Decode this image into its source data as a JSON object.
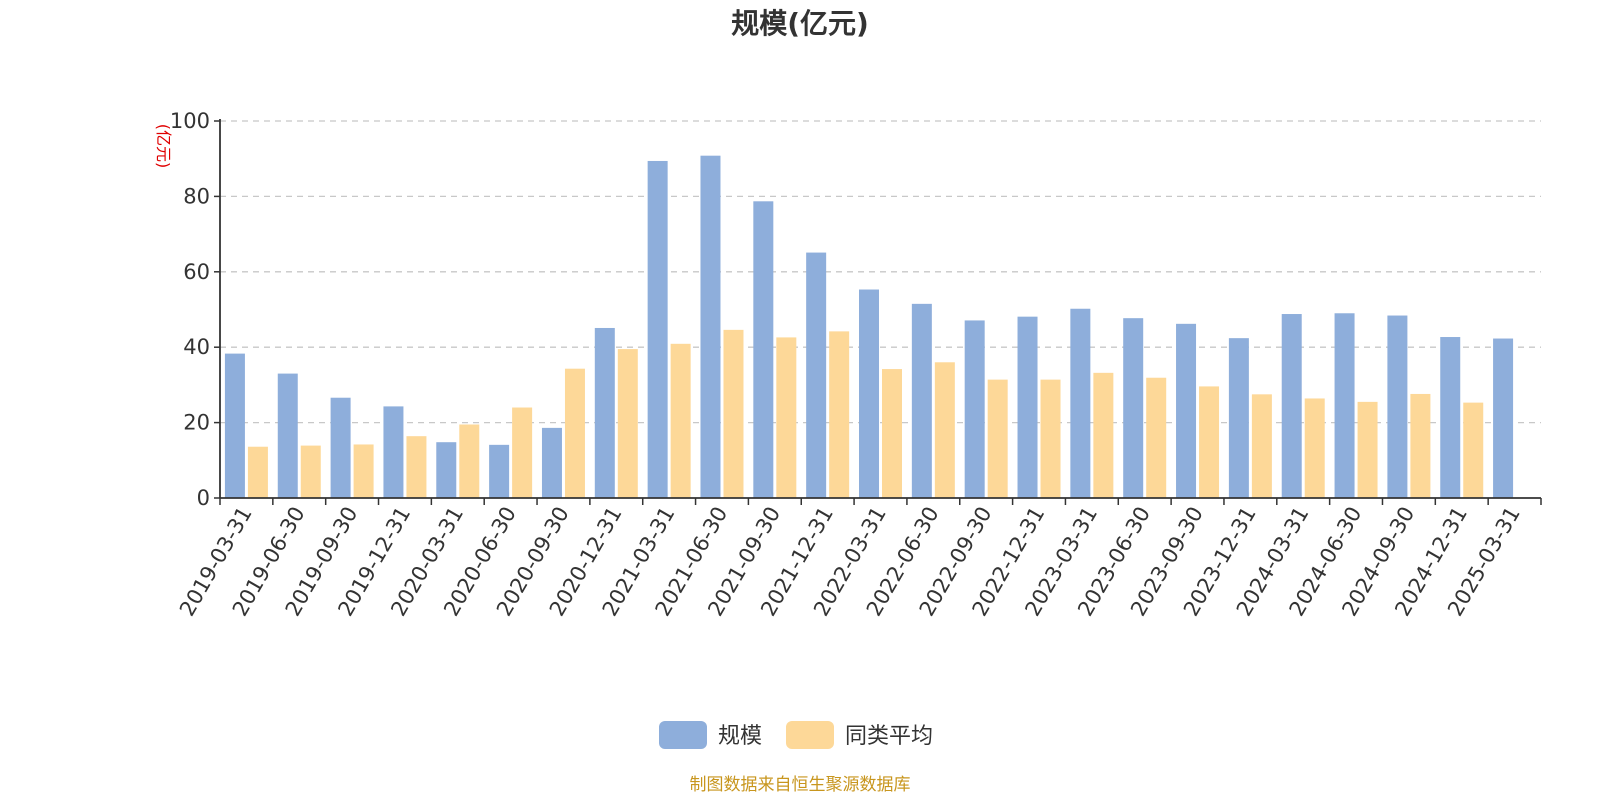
{
  "chart_data": {
    "type": "bar",
    "title": "规模(亿元)",
    "ylabel": "(亿元)",
    "ylim": [
      0,
      100
    ],
    "yticks": [
      0,
      20,
      40,
      60,
      80,
      100
    ],
    "grid": true,
    "legend_position": "bottom",
    "categories": [
      "2019-03-31",
      "2019-06-30",
      "2019-09-30",
      "2019-12-31",
      "2020-03-31",
      "2020-06-30",
      "2020-09-30",
      "2020-12-31",
      "2021-03-31",
      "2021-06-30",
      "2021-09-30",
      "2021-12-31",
      "2022-03-31",
      "2022-06-30",
      "2022-09-30",
      "2022-12-31",
      "2023-03-31",
      "2023-06-30",
      "2023-09-30",
      "2023-12-31",
      "2024-03-31",
      "2024-06-30",
      "2024-09-30",
      "2024-12-31",
      "2025-03-31"
    ],
    "series": [
      {
        "name": "规模",
        "color": "#8eaedb",
        "values": [
          38.3,
          33.0,
          26.6,
          24.3,
          14.8,
          14.1,
          18.6,
          45.1,
          89.4,
          90.8,
          78.7,
          65.1,
          55.3,
          51.5,
          47.1,
          48.1,
          50.2,
          47.7,
          46.2,
          42.4,
          48.8,
          49.0,
          48.4,
          42.7,
          42.3
        ]
      },
      {
        "name": "同类平均",
        "color": "#fdd898",
        "values": [
          13.6,
          13.9,
          14.2,
          16.4,
          19.5,
          24.0,
          34.3,
          39.5,
          40.9,
          44.6,
          42.6,
          44.2,
          34.2,
          36.0,
          31.4,
          31.4,
          33.2,
          31.9,
          29.6,
          27.5,
          26.4,
          25.5,
          27.6,
          25.3,
          null
        ]
      }
    ]
  },
  "footer": {
    "source": "制图数据来自恒生聚源数据库"
  }
}
